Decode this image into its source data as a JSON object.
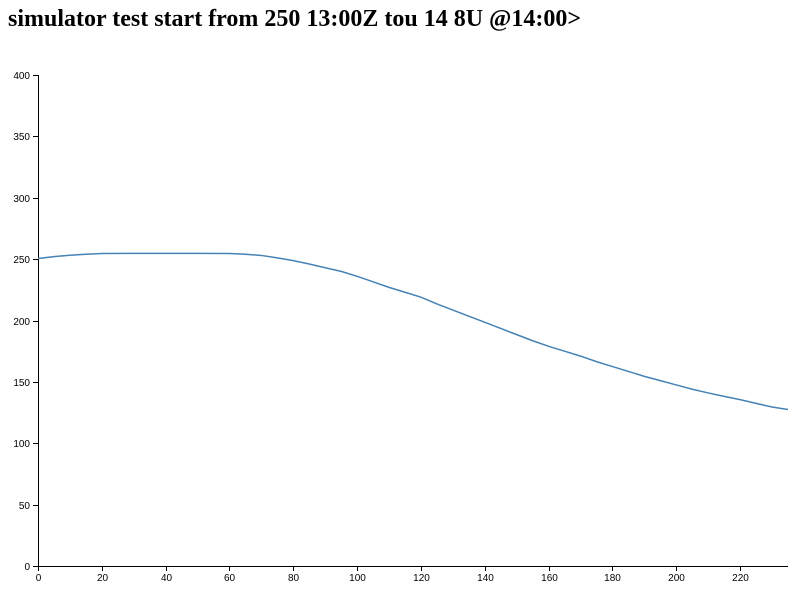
{
  "page": {
    "title": "simulator test start from 250 13:00Z tou 14 8U @14:00>"
  },
  "chart_data": {
    "type": "line",
    "title": "simulator test start from 250 13:00Z tou 14 8U @14:00>",
    "xlabel": "",
    "ylabel": "",
    "xlim": [
      0,
      235
    ],
    "ylim": [
      0,
      400
    ],
    "x_ticks": [
      0,
      20,
      40,
      60,
      80,
      100,
      120,
      140,
      160,
      180,
      200,
      220
    ],
    "y_ticks": [
      0,
      50,
      100,
      150,
      200,
      250,
      300,
      350,
      400
    ],
    "grid": false,
    "legend": "none",
    "series": [
      {
        "color": "#4682b4",
        "x": [
          0,
          5,
          10,
          15,
          20,
          30,
          40,
          50,
          60,
          65,
          70,
          75,
          80,
          85,
          90,
          95,
          100,
          105,
          110,
          115,
          120,
          125,
          130,
          135,
          140,
          145,
          150,
          155,
          160,
          165,
          170,
          175,
          180,
          185,
          190,
          195,
          200,
          205,
          210,
          215,
          220,
          225,
          230,
          235
        ],
        "values": [
          250.5,
          252,
          253.2,
          254,
          254.6,
          254.7,
          254.7,
          254.7,
          254.6,
          254,
          253,
          251,
          248.8,
          246,
          243,
          240,
          236,
          231.5,
          227,
          223,
          219,
          213.5,
          208.5,
          203.5,
          198.5,
          193.5,
          188.5,
          183.5,
          179,
          175,
          171,
          166.5,
          162.5,
          158.5,
          154.5,
          151,
          147.5,
          144,
          141,
          138.2,
          135.5,
          132.5,
          129.5,
          127.5
        ]
      }
    ]
  }
}
